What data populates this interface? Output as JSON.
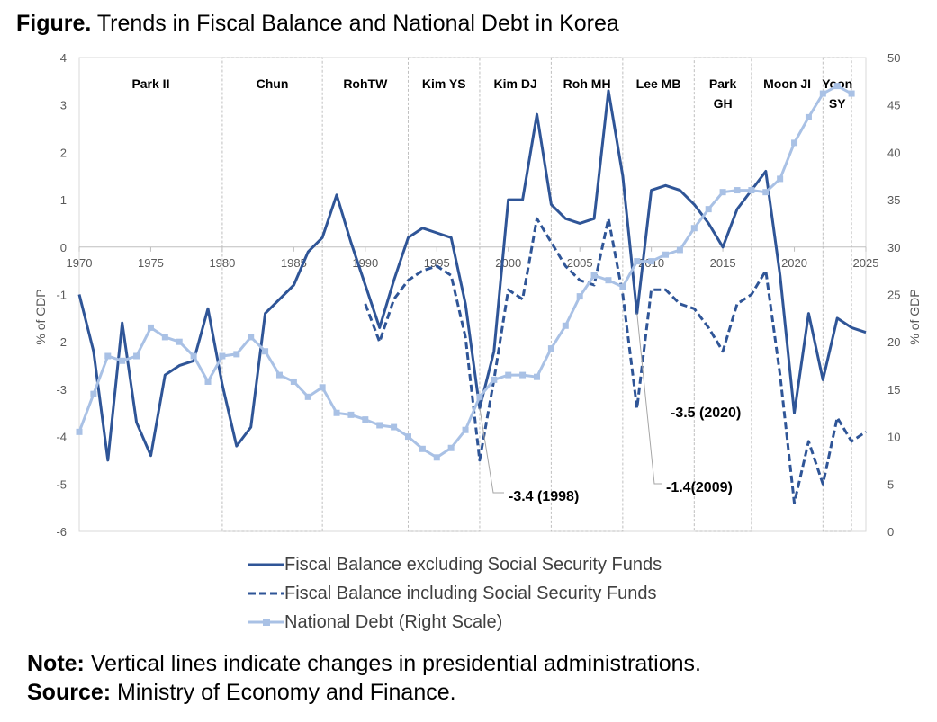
{
  "figure": {
    "title_bold": "Figure.",
    "title_rest": " Trends in Fiscal Balance and National Debt in Korea"
  },
  "notes": {
    "note_bold": "Note:",
    "note_text": " Vertical lines indicate changes in presidential administrations.",
    "source_bold": "Source:",
    "source_text": " Ministry of Economy and Finance."
  },
  "chart_data": {
    "type": "line",
    "x_ticks": [
      "1970",
      "1975",
      "1980",
      "1985",
      "1990",
      "1995",
      "2000",
      "2005",
      "2010",
      "2015",
      "2020",
      "2025"
    ],
    "xlim": [
      1970,
      2025
    ],
    "y_left": {
      "label": "% of GDP",
      "lim": [
        -6,
        4
      ],
      "ticks": [
        "4",
        "3",
        "2",
        "1",
        "0",
        "-1",
        "-2",
        "-3",
        "-4",
        "-5",
        "-6"
      ]
    },
    "y_right": {
      "label": "% of GDP",
      "lim": [
        0,
        50
      ],
      "ticks": [
        "50",
        "45",
        "40",
        "35",
        "30",
        "25",
        "20",
        "15",
        "10",
        "5",
        "0"
      ]
    },
    "administrations": [
      {
        "label": [
          "Park II"
        ],
        "start": 1970,
        "end": 1980
      },
      {
        "label": [
          "Chun"
        ],
        "start": 1980,
        "end": 1987
      },
      {
        "label": [
          "RohTW"
        ],
        "start": 1987,
        "end": 1993
      },
      {
        "label": [
          "Kim YS"
        ],
        "start": 1993,
        "end": 1998
      },
      {
        "label": [
          "Kim DJ"
        ],
        "start": 1998,
        "end": 2003
      },
      {
        "label": [
          "Roh MH"
        ],
        "start": 2003,
        "end": 2008
      },
      {
        "label": [
          "Lee MB"
        ],
        "start": 2008,
        "end": 2013
      },
      {
        "label": [
          "Park",
          "GH"
        ],
        "start": 2013,
        "end": 2017
      },
      {
        "label": [
          "Moon JI"
        ],
        "start": 2017,
        "end": 2022
      },
      {
        "label": [
          "Yoon",
          "SY"
        ],
        "start": 2022,
        "end": 2024
      }
    ],
    "series": [
      {
        "name": "Fiscal Balance excluding Social Security Funds",
        "axis": "left",
        "color": "#2F5597",
        "style": "solid",
        "x": [
          1970,
          1971,
          1972,
          1973,
          1974,
          1975,
          1976,
          1977,
          1978,
          1979,
          1980,
          1981,
          1982,
          1983,
          1984,
          1985,
          1986,
          1987,
          1988,
          1989,
          1990,
          1991,
          1992,
          1993,
          1994,
          1995,
          1996,
          1997,
          1998,
          1999,
          2000,
          2001,
          2002,
          2003,
          2004,
          2005,
          2006,
          2007,
          2008,
          2009,
          2010,
          2011,
          2012,
          2013,
          2014,
          2015,
          2016,
          2017,
          2018,
          2019,
          2020,
          2021,
          2022,
          2023,
          2024,
          2025
        ],
        "y": [
          -1.0,
          -2.2,
          -4.5,
          -1.6,
          -3.7,
          -4.4,
          -2.7,
          -2.5,
          -2.4,
          -1.3,
          -2.9,
          -4.2,
          -3.8,
          -1.4,
          -1.1,
          -0.8,
          -0.1,
          0.2,
          1.1,
          0.1,
          -0.8,
          -1.7,
          -0.7,
          0.2,
          0.4,
          0.3,
          0.2,
          -1.2,
          -3.4,
          -2.2,
          1.0,
          1.0,
          2.8,
          0.9,
          0.6,
          0.5,
          0.6,
          3.3,
          1.5,
          -1.4,
          1.2,
          1.3,
          1.2,
          0.9,
          0.5,
          0.0,
          0.8,
          1.2,
          1.6,
          -0.6,
          -3.5,
          -1.4,
          -2.8,
          -1.5,
          -1.7,
          -1.8
        ]
      },
      {
        "name": "Fiscal Balance including Social Security Funds",
        "axis": "left",
        "color": "#2F5597",
        "style": "dashed",
        "x": [
          1990,
          1991,
          1992,
          1993,
          1994,
          1995,
          1996,
          1997,
          1998,
          1999,
          2000,
          2001,
          2002,
          2003,
          2004,
          2005,
          2006,
          2007,
          2008,
          2009,
          2010,
          2011,
          2012,
          2013,
          2014,
          2015,
          2016,
          2017,
          2018,
          2019,
          2020,
          2021,
          2022,
          2023,
          2024,
          2025
        ],
        "y": [
          -1.2,
          -2.0,
          -1.1,
          -0.7,
          -0.5,
          -0.4,
          -0.6,
          -1.9,
          -4.5,
          -2.8,
          -0.9,
          -1.1,
          0.6,
          0.1,
          -0.4,
          -0.7,
          -0.8,
          0.6,
          -1.0,
          -3.4,
          -0.9,
          -0.9,
          -1.2,
          -1.3,
          -1.7,
          -2.2,
          -1.2,
          -1.0,
          -0.5,
          -2.7,
          -5.4,
          -4.1,
          -5.0,
          -3.6,
          -4.1,
          -3.9
        ]
      },
      {
        "name": "National Debt (Right Scale)",
        "axis": "right",
        "color": "#A9C1E5",
        "style": "solid",
        "x": [
          1970,
          1971,
          1972,
          1973,
          1974,
          1975,
          1976,
          1977,
          1978,
          1979,
          1980,
          1981,
          1982,
          1983,
          1984,
          1985,
          1986,
          1987,
          1988,
          1989,
          1990,
          1991,
          1992,
          1993,
          1994,
          1995,
          1996,
          1997,
          1998,
          1999,
          2000,
          2001,
          2002,
          2003,
          2004,
          2005,
          2006,
          2007,
          2008,
          2009,
          2010,
          2011,
          2012,
          2013,
          2014,
          2015,
          2016,
          2017,
          2018,
          2019,
          2020,
          2021,
          2022,
          2023,
          2024
        ],
        "y": [
          10.5,
          14.5,
          18.5,
          18.0,
          18.5,
          21.5,
          20.5,
          20.0,
          18.5,
          15.8,
          18.5,
          18.7,
          20.5,
          19.0,
          16.5,
          15.8,
          14.2,
          15.2,
          12.5,
          12.3,
          11.8,
          11.2,
          11.0,
          10.0,
          8.7,
          7.8,
          8.8,
          10.7,
          14.2,
          16.0,
          16.5,
          16.5,
          16.3,
          19.3,
          21.7,
          24.8,
          27.0,
          26.5,
          25.8,
          28.5,
          28.5,
          29.2,
          29.7,
          32.0,
          34.0,
          35.8,
          36.0,
          36.0,
          35.8,
          37.2,
          41.0,
          43.7,
          46.2,
          47.0,
          46.2
        ]
      }
    ],
    "annotations": [
      {
        "text": "-3.4 (1998)",
        "x": 1998,
        "y": -3.4
      },
      {
        "text": "-1.4(2009)",
        "x": 2009,
        "y": -1.4
      },
      {
        "text": "-3.5 (2020)",
        "x": 2020,
        "y": -3.5
      }
    ]
  }
}
